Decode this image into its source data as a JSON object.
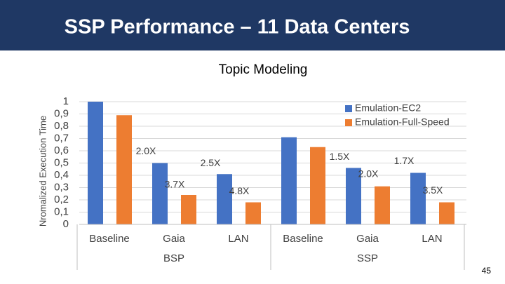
{
  "header": {
    "title": "SSP Performance – 11 Data Centers"
  },
  "chart_data": {
    "type": "bar",
    "title": "Topic Modeling",
    "y_label": "Nromalized Execution Time",
    "categories": [
      "Baseline",
      "Gaia",
      "LAN",
      "Baseline",
      "Gaia",
      "LAN"
    ],
    "groups": [
      "BSP",
      "SSP"
    ],
    "series": [
      {
        "name": "Emulation-EC2",
        "color": "#4472c4",
        "values": [
          1.0,
          0.5,
          0.41,
          0.71,
          0.46,
          0.42
        ]
      },
      {
        "name": "Emulation-Full-Speed",
        "color": "#ed7d31",
        "values": [
          0.89,
          0.24,
          0.18,
          0.63,
          0.31,
          0.18
        ]
      }
    ],
    "ylim": [
      0,
      1
    ],
    "yticks": [
      0,
      {
        "value": 0.1,
        "label": "0,1"
      },
      {
        "value": 0.2,
        "label": "0,2"
      },
      {
        "value": 0.3,
        "label": "0,3"
      },
      {
        "value": 0.4,
        "label": "0,4"
      },
      {
        "value": 0.5,
        "label": "0,5"
      },
      {
        "value": 0.6,
        "label": "0,6"
      },
      {
        "value": 0.7,
        "label": "0,7"
      },
      {
        "value": 0.8,
        "label": "0,8"
      },
      {
        "value": 0.9,
        "label": "0,9"
      },
      1
    ],
    "grid": true,
    "legend": "top-right",
    "annotations": [
      "2.0X",
      "3.7X",
      "2.5X",
      "4.8X",
      "1.5X",
      "2.0X",
      "1.7X",
      "3.5X"
    ]
  },
  "page_number": "45"
}
